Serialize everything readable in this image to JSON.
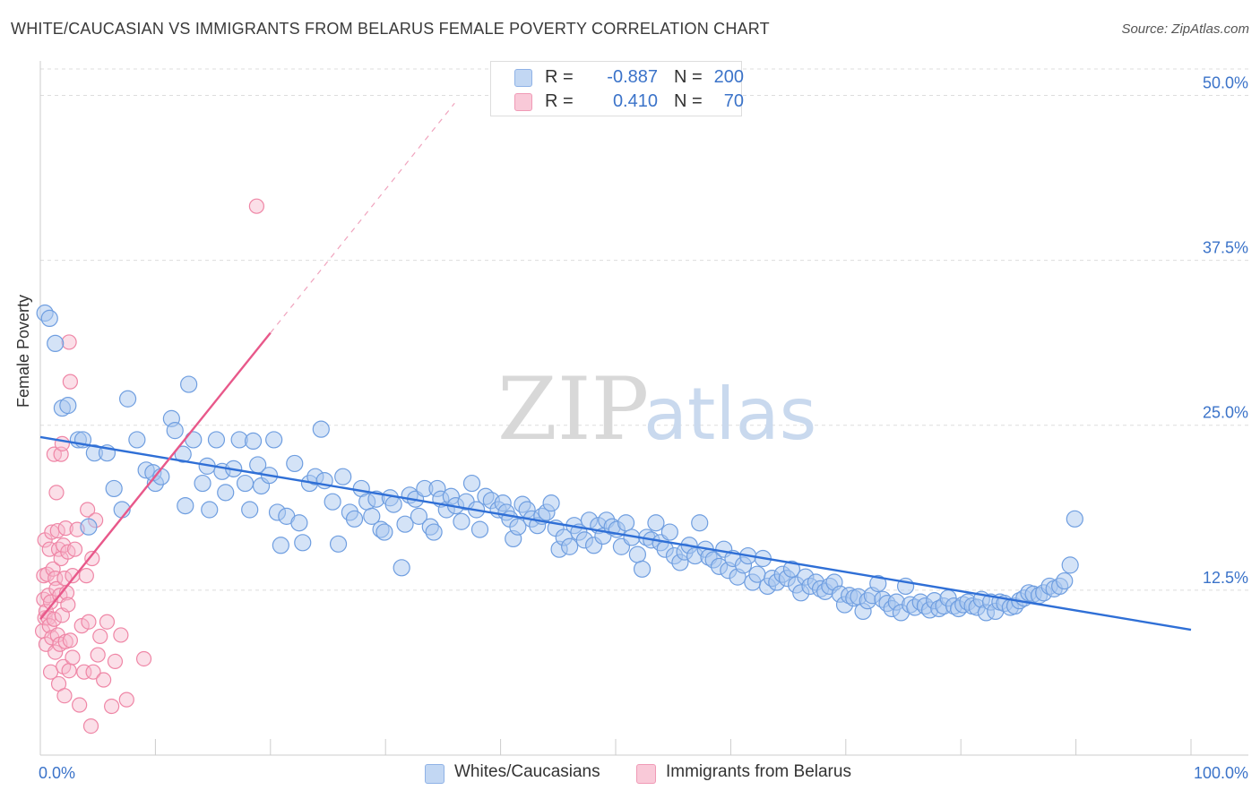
{
  "title": "WHITE/CAUCASIAN VS IMMIGRANTS FROM BELARUS FEMALE POVERTY CORRELATION CHART",
  "source": "Source: ZipAtlas.com",
  "watermark": {
    "zip": "ZIP",
    "atlas": "atlas"
  },
  "legend_top": {
    "row1": {
      "r_label": "R =",
      "r_value": "-0.887",
      "n_label": "N =",
      "n_value": "200"
    },
    "row2": {
      "r_label": "R =",
      "r_value": "0.410",
      "n_label": "N =",
      "n_value": "70"
    }
  },
  "legend_bottom": {
    "series1": "Whites/Caucasians",
    "series2": "Immigrants from Belarus"
  },
  "colors": {
    "blue_fill": "#a9c8f0",
    "blue_stroke": "#6f9ee0",
    "blue_line": "#2f6fd6",
    "pink_fill": "#f7b7cb",
    "pink_stroke": "#ef86a6",
    "pink_line": "#e8588a",
    "tick_label": "#3b73c9",
    "grid": "#dddddd"
  },
  "chart_data": {
    "type": "scatter",
    "title": "WHITE/CAUCASIAN VS IMMIGRANTS FROM BELARUS FEMALE POVERTY CORRELATION CHART",
    "xlabel": "",
    "ylabel": "Female Poverty",
    "xlim": [
      0,
      100
    ],
    "ylim": [
      0,
      52
    ],
    "x_tick_labels": [
      {
        "value": 0,
        "label": "0.0%"
      },
      {
        "value": 100,
        "label": "100.0%"
      }
    ],
    "y_ticks": [
      {
        "value": 12.5,
        "label": "12.5%"
      },
      {
        "value": 25,
        "label": "25.0%"
      },
      {
        "value": 37.5,
        "label": "37.5%"
      },
      {
        "value": 50,
        "label": "50.0%"
      }
    ],
    "series": [
      {
        "name": "Whites/Caucasians",
        "R": -0.887,
        "N": 200,
        "trend": {
          "x0": 0,
          "y0": 24.1,
          "x1": 100,
          "y1": 9.5
        },
        "points": [
          [
            0.4,
            33.5
          ],
          [
            0.8,
            33.1
          ],
          [
            1.3,
            31.2
          ],
          [
            1.9,
            26.3
          ],
          [
            2.4,
            26.5
          ],
          [
            3.3,
            23.9
          ],
          [
            3.7,
            23.9
          ],
          [
            4.2,
            17.3
          ],
          [
            4.7,
            22.9
          ],
          [
            5.8,
            22.9
          ],
          [
            6.4,
            20.2
          ],
          [
            7.1,
            18.6
          ],
          [
            7.6,
            27.0
          ],
          [
            9.2,
            21.6
          ],
          [
            10.0,
            20.6
          ],
          [
            8.4,
            23.9
          ],
          [
            9.8,
            21.4
          ],
          [
            10.5,
            21.1
          ],
          [
            11.4,
            25.5
          ],
          [
            11.7,
            24.6
          ],
          [
            12.4,
            22.8
          ],
          [
            12.6,
            18.9
          ],
          [
            12.9,
            28.1
          ],
          [
            13.3,
            23.9
          ],
          [
            14.1,
            20.6
          ],
          [
            14.5,
            21.9
          ],
          [
            14.7,
            18.6
          ],
          [
            15.3,
            23.9
          ],
          [
            15.8,
            21.5
          ],
          [
            16.1,
            19.9
          ],
          [
            16.8,
            21.7
          ],
          [
            17.3,
            23.9
          ],
          [
            17.8,
            20.6
          ],
          [
            18.2,
            18.6
          ],
          [
            18.5,
            23.8
          ],
          [
            18.9,
            22.0
          ],
          [
            19.2,
            20.4
          ],
          [
            19.9,
            21.2
          ],
          [
            20.3,
            23.9
          ],
          [
            20.6,
            18.4
          ],
          [
            20.9,
            15.9
          ],
          [
            21.4,
            18.1
          ],
          [
            22.1,
            22.1
          ],
          [
            22.5,
            17.6
          ],
          [
            22.8,
            16.1
          ],
          [
            23.4,
            20.6
          ],
          [
            23.9,
            21.1
          ],
          [
            24.4,
            24.7
          ],
          [
            24.7,
            20.8
          ],
          [
            25.4,
            19.2
          ],
          [
            25.9,
            16.0
          ],
          [
            26.3,
            21.1
          ],
          [
            26.9,
            18.4
          ],
          [
            27.3,
            17.9
          ],
          [
            27.9,
            20.2
          ],
          [
            28.4,
            19.2
          ],
          [
            28.8,
            18.1
          ],
          [
            29.2,
            19.4
          ],
          [
            29.6,
            17.1
          ],
          [
            29.9,
            16.9
          ],
          [
            30.4,
            19.5
          ],
          [
            30.7,
            19.0
          ],
          [
            31.4,
            14.2
          ],
          [
            31.7,
            17.5
          ],
          [
            32.1,
            19.7
          ],
          [
            32.6,
            19.4
          ],
          [
            32.9,
            18.1
          ],
          [
            33.4,
            20.2
          ],
          [
            33.9,
            17.3
          ],
          [
            34.2,
            16.9
          ],
          [
            34.5,
            20.2
          ],
          [
            34.8,
            19.4
          ],
          [
            35.3,
            18.6
          ],
          [
            35.7,
            19.6
          ],
          [
            36.1,
            18.9
          ],
          [
            36.6,
            17.7
          ],
          [
            37.0,
            19.2
          ],
          [
            37.5,
            20.6
          ],
          [
            37.9,
            18.6
          ],
          [
            38.2,
            17.1
          ],
          [
            38.7,
            19.6
          ],
          [
            39.2,
            19.3
          ],
          [
            39.8,
            18.6
          ],
          [
            40.2,
            19.1
          ],
          [
            40.5,
            18.4
          ],
          [
            40.8,
            17.9
          ],
          [
            41.1,
            16.4
          ],
          [
            41.5,
            17.3
          ],
          [
            41.9,
            19.0
          ],
          [
            42.3,
            18.6
          ],
          [
            42.7,
            17.9
          ],
          [
            43.2,
            17.4
          ],
          [
            43.6,
            18.1
          ],
          [
            44.0,
            18.4
          ],
          [
            44.4,
            19.1
          ],
          [
            44.8,
            17.2
          ],
          [
            45.1,
            15.6
          ],
          [
            45.5,
            16.5
          ],
          [
            46.0,
            15.8
          ],
          [
            46.4,
            17.4
          ],
          [
            46.8,
            16.9
          ],
          [
            47.3,
            16.3
          ],
          [
            47.7,
            17.8
          ],
          [
            48.1,
            15.9
          ],
          [
            48.5,
            17.4
          ],
          [
            48.9,
            16.6
          ],
          [
            49.2,
            17.8
          ],
          [
            49.7,
            17.3
          ],
          [
            50.1,
            17.1
          ],
          [
            50.5,
            15.8
          ],
          [
            50.9,
            17.6
          ],
          [
            51.4,
            16.5
          ],
          [
            51.9,
            15.2
          ],
          [
            52.3,
            14.1
          ],
          [
            52.7,
            16.5
          ],
          [
            53.1,
            16.3
          ],
          [
            53.5,
            17.6
          ],
          [
            53.9,
            16.1
          ],
          [
            54.3,
            15.6
          ],
          [
            54.7,
            16.9
          ],
          [
            55.1,
            15.1
          ],
          [
            55.6,
            14.6
          ],
          [
            56.0,
            15.4
          ],
          [
            56.4,
            15.9
          ],
          [
            56.9,
            15.1
          ],
          [
            57.3,
            17.6
          ],
          [
            57.8,
            15.6
          ],
          [
            58.1,
            15.0
          ],
          [
            58.5,
            14.8
          ],
          [
            59.0,
            14.3
          ],
          [
            59.4,
            15.6
          ],
          [
            59.8,
            14.0
          ],
          [
            60.2,
            14.9
          ],
          [
            60.6,
            13.5
          ],
          [
            61.1,
            14.4
          ],
          [
            61.5,
            15.1
          ],
          [
            61.9,
            13.1
          ],
          [
            62.3,
            13.7
          ],
          [
            62.8,
            14.9
          ],
          [
            63.2,
            12.8
          ],
          [
            63.6,
            13.4
          ],
          [
            64.0,
            13.1
          ],
          [
            64.5,
            13.7
          ],
          [
            64.9,
            13.4
          ],
          [
            65.3,
            14.1
          ],
          [
            65.7,
            12.9
          ],
          [
            66.1,
            12.3
          ],
          [
            66.5,
            13.5
          ],
          [
            66.9,
            12.8
          ],
          [
            67.4,
            13.1
          ],
          [
            67.8,
            12.6
          ],
          [
            68.2,
            12.4
          ],
          [
            68.6,
            12.8
          ],
          [
            69.0,
            13.1
          ],
          [
            69.5,
            12.2
          ],
          [
            69.9,
            11.4
          ],
          [
            70.3,
            12.1
          ],
          [
            70.7,
            11.9
          ],
          [
            71.1,
            12.0
          ],
          [
            71.5,
            10.9
          ],
          [
            71.9,
            11.7
          ],
          [
            72.3,
            12.1
          ],
          [
            72.8,
            13.0
          ],
          [
            73.2,
            11.8
          ],
          [
            73.6,
            11.5
          ],
          [
            74.0,
            11.1
          ],
          [
            74.4,
            11.6
          ],
          [
            74.8,
            10.8
          ],
          [
            75.2,
            12.8
          ],
          [
            75.6,
            11.4
          ],
          [
            76.0,
            11.2
          ],
          [
            76.5,
            11.6
          ],
          [
            76.9,
            11.3
          ],
          [
            77.3,
            11.0
          ],
          [
            77.7,
            11.7
          ],
          [
            78.1,
            11.1
          ],
          [
            78.5,
            11.3
          ],
          [
            78.9,
            11.9
          ],
          [
            79.4,
            11.3
          ],
          [
            79.8,
            11.1
          ],
          [
            80.2,
            11.4
          ],
          [
            80.6,
            11.6
          ],
          [
            81.0,
            11.3
          ],
          [
            81.4,
            11.2
          ],
          [
            81.8,
            11.8
          ],
          [
            82.2,
            10.8
          ],
          [
            82.6,
            11.6
          ],
          [
            83.0,
            10.9
          ],
          [
            83.4,
            11.6
          ],
          [
            83.8,
            11.5
          ],
          [
            84.3,
            11.2
          ],
          [
            84.7,
            11.3
          ],
          [
            85.1,
            11.7
          ],
          [
            85.5,
            11.9
          ],
          [
            85.9,
            12.3
          ],
          [
            86.3,
            12.2
          ],
          [
            86.8,
            12.1
          ],
          [
            87.2,
            12.3
          ],
          [
            87.7,
            12.8
          ],
          [
            88.1,
            12.6
          ],
          [
            88.6,
            12.8
          ],
          [
            89.0,
            13.2
          ],
          [
            89.5,
            14.4
          ],
          [
            89.9,
            17.9
          ]
        ]
      },
      {
        "name": "Immigrants from Belarus",
        "R": 0.41,
        "N": 70,
        "trend": {
          "x0": 0,
          "y0": 10.3,
          "x1": 20,
          "y1": 32.0
        },
        "trend_extension": {
          "x0": 20,
          "y0": 32.0,
          "x1": 36,
          "y1": 49.4
        },
        "points": [
          [
            0.2,
            9.4
          ],
          [
            0.3,
            11.8
          ],
          [
            0.3,
            13.6
          ],
          [
            0.4,
            10.4
          ],
          [
            0.4,
            16.3
          ],
          [
            0.5,
            10.9
          ],
          [
            0.5,
            8.4
          ],
          [
            0.6,
            13.7
          ],
          [
            0.7,
            12.1
          ],
          [
            0.7,
            10.4
          ],
          [
            0.8,
            15.6
          ],
          [
            0.8,
            9.8
          ],
          [
            0.9,
            6.3
          ],
          [
            0.9,
            11.6
          ],
          [
            1.0,
            16.9
          ],
          [
            1.0,
            8.9
          ],
          [
            1.1,
            14.1
          ],
          [
            1.2,
            10.3
          ],
          [
            1.2,
            22.8
          ],
          [
            1.3,
            13.4
          ],
          [
            1.3,
            7.8
          ],
          [
            1.4,
            19.9
          ],
          [
            1.4,
            12.6
          ],
          [
            1.5,
            17.0
          ],
          [
            1.5,
            9.1
          ],
          [
            1.6,
            15.6
          ],
          [
            1.6,
            5.4
          ],
          [
            1.7,
            12.1
          ],
          [
            1.7,
            8.4
          ],
          [
            1.8,
            22.8
          ],
          [
            1.8,
            14.9
          ],
          [
            1.9,
            23.6
          ],
          [
            1.9,
            10.6
          ],
          [
            2.0,
            6.7
          ],
          [
            2.0,
            15.9
          ],
          [
            2.1,
            13.4
          ],
          [
            2.1,
            4.5
          ],
          [
            2.2,
            8.6
          ],
          [
            2.2,
            17.2
          ],
          [
            2.3,
            12.3
          ],
          [
            2.4,
            15.4
          ],
          [
            2.4,
            11.4
          ],
          [
            2.5,
            31.3
          ],
          [
            2.5,
            6.4
          ],
          [
            2.6,
            28.3
          ],
          [
            2.6,
            8.7
          ],
          [
            2.8,
            13.6
          ],
          [
            2.8,
            7.4
          ],
          [
            3.0,
            15.6
          ],
          [
            3.2,
            17.1
          ],
          [
            3.4,
            3.8
          ],
          [
            3.6,
            9.8
          ],
          [
            3.8,
            6.3
          ],
          [
            4.0,
            13.6
          ],
          [
            4.1,
            18.6
          ],
          [
            4.2,
            10.1
          ],
          [
            4.4,
            2.2
          ],
          [
            4.5,
            14.9
          ],
          [
            4.6,
            6.3
          ],
          [
            4.8,
            17.8
          ],
          [
            5.0,
            7.6
          ],
          [
            5.2,
            9.0
          ],
          [
            5.5,
            5.7
          ],
          [
            5.8,
            10.1
          ],
          [
            6.2,
            3.7
          ],
          [
            6.5,
            7.1
          ],
          [
            7.0,
            9.1
          ],
          [
            7.5,
            4.2
          ],
          [
            9.0,
            7.3
          ],
          [
            18.8,
            41.6
          ]
        ]
      }
    ]
  }
}
